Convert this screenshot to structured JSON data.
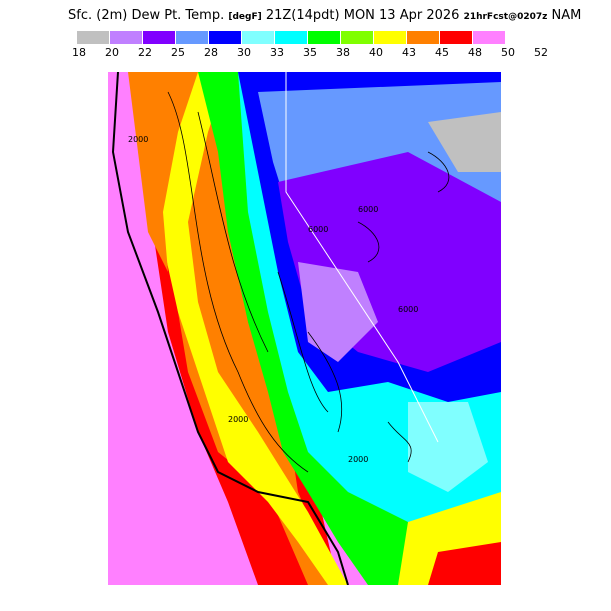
{
  "title": {
    "main": "Sfc. (2m) Dew Pt. Temp.",
    "units": "[degF]",
    "time": "21Z(14pdt) MON 13 Apr 2026",
    "forecast": "21hrFcst@0207z",
    "model": "NAM"
  },
  "legend": {
    "colors": [
      "#c0c0c0",
      "#c080ff",
      "#8000ff",
      "#6699ff",
      "#0000ff",
      "#80ffff",
      "#00ffff",
      "#00ff00",
      "#80ff00",
      "#ffff00",
      "#ff8000",
      "#ff0000",
      "#ff80ff"
    ],
    "ticks": [
      "18",
      "20",
      "22",
      "25",
      "28",
      "30",
      "33",
      "35",
      "38",
      "40",
      "43",
      "45",
      "48",
      "50",
      "52"
    ]
  },
  "map": {
    "variable": "dew point",
    "region": "California / Nevada",
    "contour_labels": [
      "2000",
      "2000",
      "6000",
      "6000",
      "6000",
      "2000"
    ]
  }
}
